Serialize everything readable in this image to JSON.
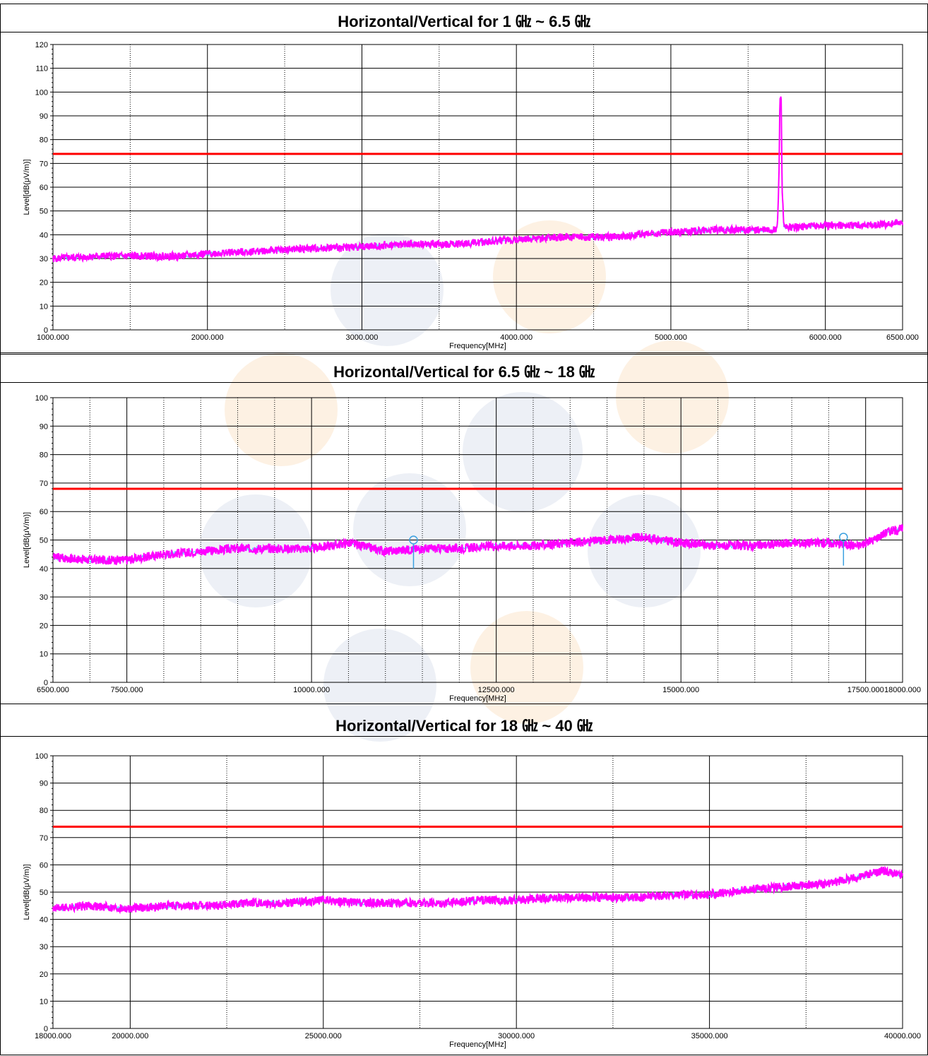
{
  "colors": {
    "limit_line": "#ff0000",
    "trace_peak": "#ff00ff",
    "trace_avg": "#4fd8ff",
    "marker": "#3aa0e0",
    "grid_major": "#000000",
    "grid_minor": "#000000",
    "watermark_blue": "#dfe4ee",
    "watermark_orange": "#fbe6cc"
  },
  "chart_data": [
    {
      "type": "line",
      "title": "Horizontal/Vertical for 1 ㎓ ~ 6.5 ㎓",
      "xlabel": "Frequency[MHz]",
      "ylabel": "Level[dB(μV/m)]",
      "xlim": [
        1000,
        6500
      ],
      "ylim": [
        0,
        120
      ],
      "xticks": [
        1000,
        2000,
        3000,
        4000,
        5000,
        6000,
        6500
      ],
      "xtick_labels": [
        "1000.000",
        "2000.000",
        "3000.000",
        "4000.000",
        "5000.000",
        "6000.000",
        "6500.000"
      ],
      "xminor": [
        1500,
        2500,
        3500,
        4500,
        5500
      ],
      "yticks": [
        0,
        10,
        20,
        30,
        40,
        50,
        60,
        70,
        80,
        90,
        100,
        110,
        120
      ],
      "limit": 74,
      "series": [
        {
          "x": [
            1000,
            1300,
            1600,
            1800,
            2000,
            2300,
            2600,
            3000,
            3300,
            3600,
            4000,
            4300,
            4600,
            5000,
            5300,
            5680,
            5690,
            5700,
            5706,
            5710,
            5714,
            5720,
            5730,
            5740,
            6000,
            6300,
            6500
          ],
          "values": [
            30,
            31,
            31,
            31,
            32,
            33,
            34,
            35,
            36,
            36,
            38,
            39,
            39,
            41,
            42,
            42,
            44,
            66,
            98,
            98,
            97,
            60,
            44,
            43,
            44,
            44,
            45
          ]
        }
      ],
      "markers": []
    },
    {
      "type": "line",
      "title": "Horizontal/Vertical for 6.5 ㎓ ~ 18 ㎓",
      "xlabel": "Frequency[MHz]",
      "ylabel": "Level[dB(μV/m)]",
      "xlim": [
        6500,
        18000
      ],
      "ylim": [
        0,
        100
      ],
      "xticks": [
        6500,
        7500,
        10000,
        12500,
        15000,
        17500,
        18000
      ],
      "xtick_labels": [
        "6500.000",
        "7500.000",
        "10000.000",
        "12500.000",
        "15000.000",
        "17500.000",
        "18000.000"
      ],
      "xminor": [
        7000,
        8000,
        8500,
        9000,
        9500,
        10500,
        11000,
        11500,
        12000,
        13000,
        13500,
        14000,
        14500,
        15500,
        16000,
        16500,
        17000
      ],
      "yticks": [
        0,
        10,
        20,
        30,
        40,
        50,
        60,
        70,
        80,
        90,
        100
      ],
      "limit": 68,
      "series": [
        {
          "x": [
            6500,
            7000,
            7500,
            8000,
            8500,
            9000,
            9500,
            10000,
            10500,
            11000,
            11500,
            12000,
            12500,
            13000,
            13500,
            14000,
            14500,
            15000,
            15500,
            16000,
            16500,
            17000,
            17400,
            17600,
            17800,
            18000
          ],
          "values": [
            44,
            43,
            43,
            45,
            46,
            47,
            47,
            47,
            49,
            46,
            47,
            47,
            48,
            48,
            49,
            50,
            51,
            49,
            48,
            48,
            49,
            49,
            48,
            50,
            53,
            54
          ]
        }
      ],
      "markers": [
        {
          "x": 11380,
          "y": 50
        },
        {
          "x": 17200,
          "y": 51
        }
      ]
    },
    {
      "type": "line",
      "title": "Horizontal/Vertical for 18 ㎓ ~ 40 ㎓",
      "xlabel": "Frequency[MHz]",
      "ylabel": "Level[dB(μV/m)]",
      "xlim": [
        18000,
        40000
      ],
      "ylim": [
        0,
        100
      ],
      "xticks": [
        18000,
        20000,
        25000,
        30000,
        35000,
        40000
      ],
      "xtick_labels": [
        "18000.000",
        "20000.000",
        "25000.000",
        "30000.000",
        "35000.000",
        "40000.000"
      ],
      "xminor": [
        22500,
        27500,
        32500,
        37500
      ],
      "yticks": [
        0,
        10,
        20,
        30,
        40,
        50,
        60,
        70,
        80,
        90,
        100
      ],
      "limit": 74,
      "series": [
        {
          "x": [
            18000,
            19000,
            20000,
            21000,
            22000,
            23000,
            24000,
            25000,
            26000,
            27000,
            28000,
            29000,
            30000,
            31000,
            32000,
            33000,
            34000,
            35000,
            36000,
            37000,
            38000,
            39000,
            39500,
            40000
          ],
          "values": [
            44,
            45,
            44,
            45,
            45,
            46,
            46,
            47,
            46,
            46,
            46,
            47,
            47,
            48,
            48,
            48,
            49,
            49,
            51,
            52,
            53,
            56,
            58,
            56
          ]
        }
      ],
      "markers": []
    }
  ]
}
